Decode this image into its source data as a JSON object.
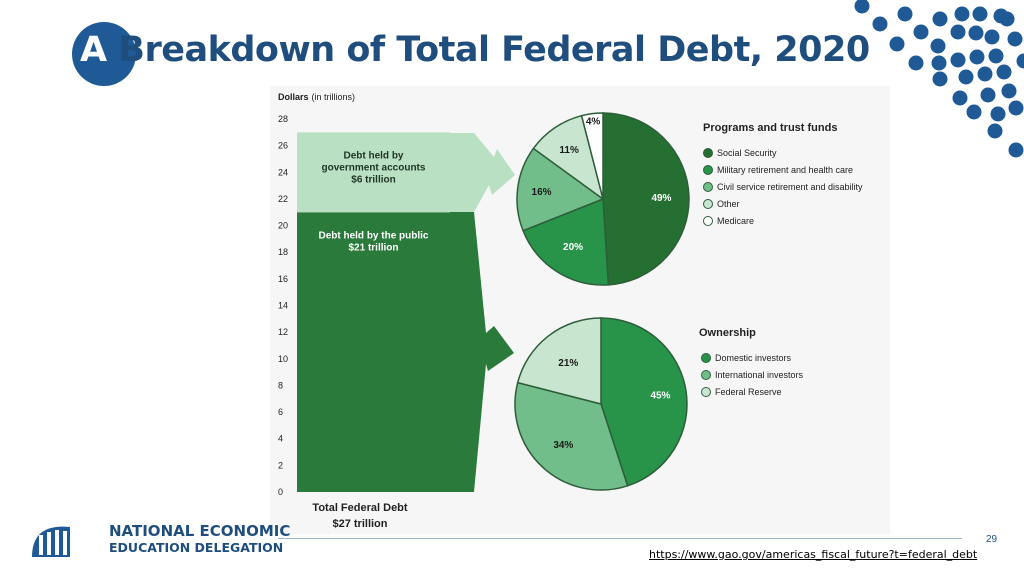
{
  "slide": {
    "title_first_letter": "A",
    "title_rest": " Breakdown of Total Federal Debt, 2020",
    "page_number": "29",
    "source_url": "https://www.gao.gov/americas_fiscal_future?t=federal_debt",
    "accent_color": "#1f5a96"
  },
  "logo": {
    "line1": "NATIONAL ECONOMIC",
    "line2": "EDUCATION DELEGATION",
    "icon": "nation-dome-icon"
  },
  "chart_data": [
    {
      "type": "bar",
      "yaxis_title_main": "Dollars",
      "yaxis_title_unit": "(in trillions)",
      "ylim": [
        0,
        28
      ],
      "yticks": [
        0,
        2,
        4,
        6,
        8,
        10,
        12,
        14,
        16,
        18,
        20,
        22,
        24,
        26,
        28
      ],
      "category": "Total Federal Debt",
      "total_label": "$27 trillion",
      "segments": [
        {
          "label_lines": [
            "Debt held by the public",
            "$21 trillion"
          ],
          "value": 21,
          "color": "#2a7a3b"
        },
        {
          "label_lines": [
            "Debt held by",
            "government accounts",
            "$6 trillion"
          ],
          "value": 6,
          "color": "#b9e0c3"
        }
      ]
    },
    {
      "type": "pie",
      "title": "Programs and trust funds",
      "slices": [
        {
          "label": "Social Security",
          "value": 49,
          "text": "49%",
          "color": "#256f32",
          "text_color": "#ffffff"
        },
        {
          "label": "Military retirement and health care",
          "value": 20,
          "text": "20%",
          "color": "#27944a",
          "text_color": "#ffffff"
        },
        {
          "label": "Civil service retirement and disability",
          "value": 16,
          "text": "16%",
          "color": "#72be8a",
          "text_color": "#1a1a1a"
        },
        {
          "label": "Other",
          "value": 11,
          "text": "11%",
          "color": "#c8e6cf",
          "text_color": "#1a1a1a"
        },
        {
          "label": "Medicare",
          "value": 4,
          "text": "4%",
          "color": "#ffffff",
          "text_color": "#1a1a1a"
        }
      ]
    },
    {
      "type": "pie",
      "title": "Ownership",
      "slices": [
        {
          "label": "Domestic investors",
          "value": 45,
          "text": "45%",
          "color": "#27944a",
          "text_color": "#ffffff"
        },
        {
          "label": "International investors",
          "value": 34,
          "text": "34%",
          "color": "#72be8a",
          "text_color": "#1a1a1a"
        },
        {
          "label": "Federal Reserve",
          "value": 21,
          "text": "21%",
          "color": "#c8e6cf",
          "text_color": "#1a1a1a"
        }
      ]
    }
  ]
}
